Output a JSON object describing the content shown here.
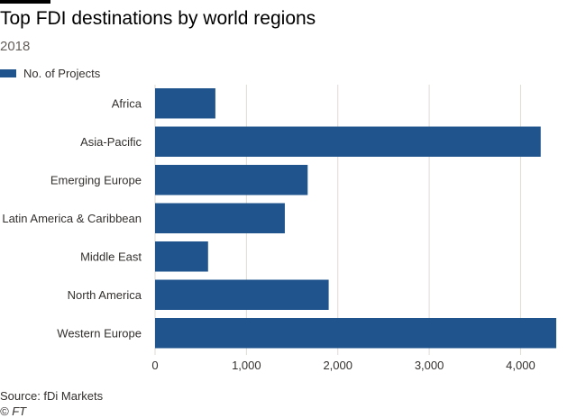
{
  "header": {
    "title": "Top FDI destinations by world regions",
    "subtitle": "2018"
  },
  "footer": {
    "source": "Source: fDi Markets",
    "credit": "© FT"
  },
  "colors": {
    "bar": "#1f558c",
    "grid": "#e0dad5",
    "label": "#33302e"
  },
  "chart_data": {
    "type": "bar",
    "orientation": "horizontal",
    "categories": [
      "Africa",
      "Asia-Pacific",
      "Emerging Europe",
      "Latin America & Caribbean",
      "Middle East",
      "North America",
      "Western Europe"
    ],
    "series": [
      {
        "name": "No. of Projects",
        "values": [
          660,
          4220,
          1670,
          1420,
          580,
          1900,
          4390
        ]
      }
    ],
    "xlim": [
      0,
      4400
    ],
    "xticks": [
      0,
      1000,
      2000,
      3000,
      4000
    ],
    "xtick_labels": [
      "0",
      "1,000",
      "2,000",
      "3,000",
      "4,000"
    ],
    "grid": "vertical",
    "legend_position": "top-left"
  }
}
